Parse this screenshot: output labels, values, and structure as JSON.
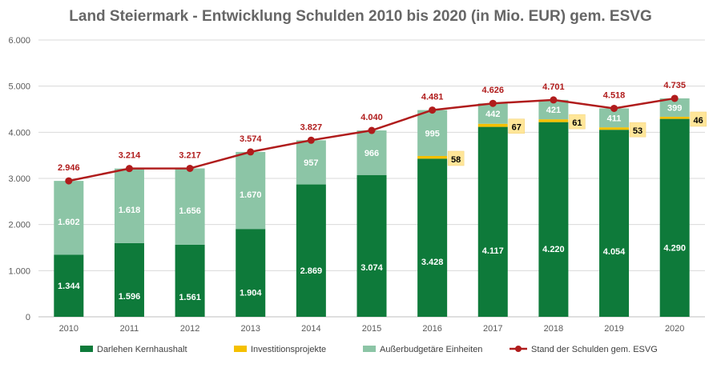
{
  "chart_data": {
    "type": "bar",
    "title": "Land Steiermark - Entwicklung Schulden 2010 bis 2020 (in Mio. EUR) gem. ESVG",
    "categories": [
      "2010",
      "2011",
      "2012",
      "2013",
      "2014",
      "2015",
      "2016",
      "2017",
      "2018",
      "2019",
      "2020"
    ],
    "ylim": [
      0,
      6000
    ],
    "yticks": [
      0,
      1000,
      2000,
      3000,
      4000,
      5000,
      6000
    ],
    "ytick_labels": [
      "0",
      "1.000",
      "2.000",
      "3.000",
      "4.000",
      "5.000",
      "6.000"
    ],
    "grid": true,
    "legend_position": "bottom",
    "series": [
      {
        "name": "Darlehen Kernhaushalt",
        "kind": "stacked-bar",
        "color": "#0E7A3A",
        "values": [
          1344,
          1596,
          1561,
          1904,
          2869,
          3074,
          3428,
          4117,
          4220,
          4054,
          4290
        ],
        "labels": [
          "1.344",
          "1.596",
          "1.561",
          "1.904",
          "2.869",
          "3.074",
          "3.428",
          "4.117",
          "4.220",
          "4.054",
          "4.290"
        ]
      },
      {
        "name": "Investitionsprojekte",
        "kind": "stacked-bar",
        "color": "#F5C000",
        "values": [
          0,
          0,
          0,
          0,
          0,
          0,
          58,
          67,
          61,
          53,
          46
        ],
        "labels": [
          "",
          "",
          "",
          "",
          "",
          "",
          "58",
          "67",
          "61",
          "53",
          "46"
        ]
      },
      {
        "name": "Außerbudgetäre Einheiten",
        "kind": "stacked-bar",
        "color": "#8CC5A6",
        "values": [
          1602,
          1618,
          1656,
          1670,
          957,
          966,
          995,
          442,
          421,
          411,
          399
        ],
        "labels": [
          "1.602",
          "1.618",
          "1.656",
          "1.670",
          "957",
          "966",
          "995",
          "442",
          "421",
          "411",
          "399"
        ]
      },
      {
        "name": "Stand der Schulden gem. ESVG",
        "kind": "line",
        "color": "#B01C1C",
        "values": [
          2946,
          3214,
          3217,
          3574,
          3827,
          4040,
          4481,
          4626,
          4701,
          4518,
          4735
        ],
        "labels": [
          "2.946",
          "3.214",
          "3.217",
          "3.574",
          "3.827",
          "4.040",
          "4.481",
          "4.626",
          "4.701",
          "4.518",
          "4.735"
        ]
      }
    ]
  }
}
